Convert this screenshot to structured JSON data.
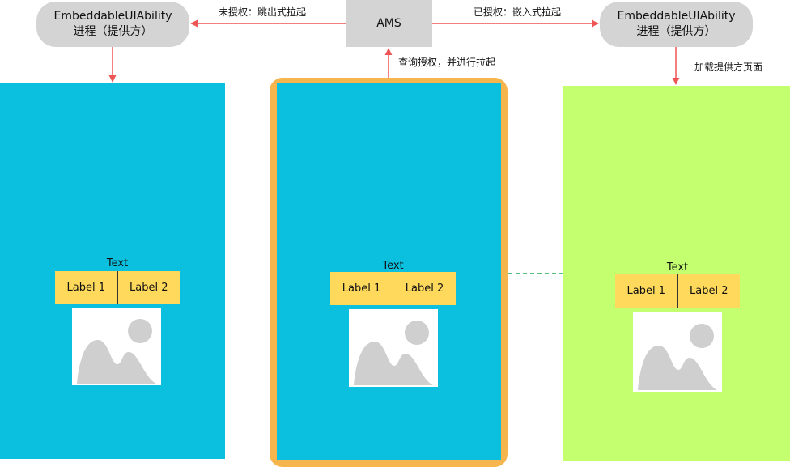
{
  "nodes": {
    "left_process": {
      "line1": "EmbeddableUIAbility",
      "line2": "进程（提供方）"
    },
    "ams": {
      "label": "AMS"
    },
    "right_process": {
      "line1": "EmbeddableUIAbility",
      "line2": "进程（提供方）"
    }
  },
  "edges": {
    "unauthorized": "未授权：跳出式拉起",
    "authorized": "已授权：嵌入式拉起",
    "query": "查询授权，并进行拉起",
    "load": "加载提供方页面"
  },
  "panels": {
    "left": {
      "text": "Text",
      "label1": "Label 1",
      "label2": "Label 2"
    },
    "middle": {
      "text": "Text",
      "label1": "Label 1",
      "label2": "Label 2"
    },
    "right": {
      "text": "Text",
      "label1": "Label 1",
      "label2": "Label 2"
    }
  },
  "colors": {
    "panel_blue": "#0bc0df",
    "panel_green": "#c3ff6e",
    "frame_orange": "#f7b54d",
    "label_yellow": "#ffd95c",
    "arrow_red": "#ee5555",
    "arrow_green_dashed": "#22aa55",
    "node_gray": "#d4d4d4"
  }
}
